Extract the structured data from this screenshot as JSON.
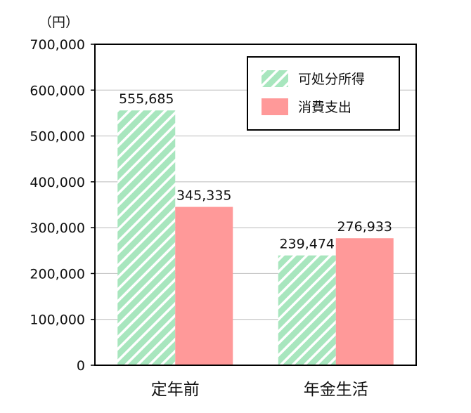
{
  "chart_data": {
    "type": "bar",
    "categories": [
      "定年前",
      "年金生活"
    ],
    "series": [
      {
        "name": "可処分所得",
        "values": [
          555685,
          239474
        ],
        "value_labels": [
          "555,685",
          "239,474"
        ],
        "color": "#a8e6be",
        "pattern": "diagonal-stripes"
      },
      {
        "name": "消費支出",
        "values": [
          345335,
          276933
        ],
        "value_labels": [
          "345,335",
          "276,933"
        ],
        "color": "#ff9999",
        "pattern": "solid"
      }
    ],
    "unit": "（円）",
    "ylim": [
      0,
      700000
    ],
    "yticks": [
      0,
      100000,
      200000,
      300000,
      400000,
      500000,
      600000,
      700000
    ],
    "ytick_labels": [
      "0",
      "100,000",
      "200,000",
      "300,000",
      "400,000",
      "500,000",
      "600,000",
      "700,000"
    ],
    "grid": true,
    "legend_position": "top-right"
  }
}
